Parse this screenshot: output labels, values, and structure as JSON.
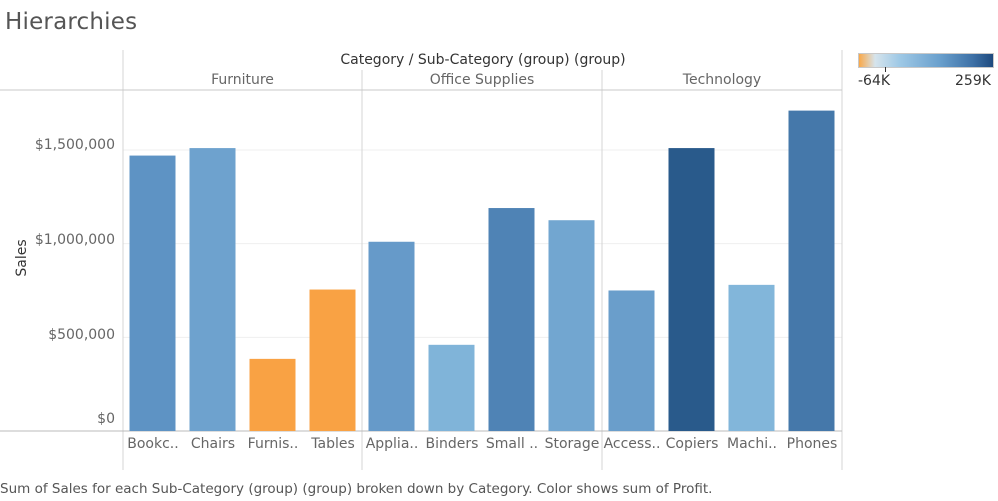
{
  "title": "Hierarchies",
  "chart_data": {
    "type": "bar",
    "header": "Category / Sub-Category (group) (group)",
    "groups": [
      {
        "name": "Furniture",
        "categories": [
          {
            "label": "Bookc..",
            "value": 1470000,
            "profit": 110000
          },
          {
            "label": "Chairs",
            "value": 1510000,
            "profit": 70000
          },
          {
            "label": "Furnis..",
            "value": 385000,
            "profit": -5000
          },
          {
            "label": "Tables",
            "value": 755000,
            "profit": -64000
          }
        ]
      },
      {
        "name": "Office Supplies",
        "categories": [
          {
            "label": "Applia..",
            "value": 1010000,
            "profit": 90000
          },
          {
            "label": "Binders",
            "value": 460000,
            "profit": 25000
          },
          {
            "label": "Small ..",
            "value": 1190000,
            "profit": 150000
          },
          {
            "label": "Storage",
            "value": 1125000,
            "profit": 60000
          }
        ]
      },
      {
        "name": "Technology",
        "categories": [
          {
            "label": "Access..",
            "value": 750000,
            "profit": 80000
          },
          {
            "label": "Copiers",
            "value": 1510000,
            "profit": 259000
          },
          {
            "label": "Machi..",
            "value": 780000,
            "profit": 20000
          },
          {
            "label": "Phones",
            "value": 1710000,
            "profit": 180000
          }
        ]
      }
    ],
    "ylabel": "Sales",
    "yticks": [
      "$1,500,000",
      "$1,000,000",
      "$500,000",
      "$0"
    ],
    "ytick_values": [
      1500000,
      1000000,
      500000,
      0
    ],
    "ylim": [
      0,
      1820000
    ],
    "grid": true,
    "color_legend": {
      "min_label": "-64K",
      "max_label": "259K",
      "min": -64000,
      "max": 259000
    },
    "colors": {
      "negative": "#f9a244",
      "low": "#8abedf",
      "mid": "#5b90c2",
      "high": "#295a8b"
    }
  },
  "footer": "Sum of Sales for each Sub-Category (group) (group) broken down by Category.  Color shows sum of Profit."
}
